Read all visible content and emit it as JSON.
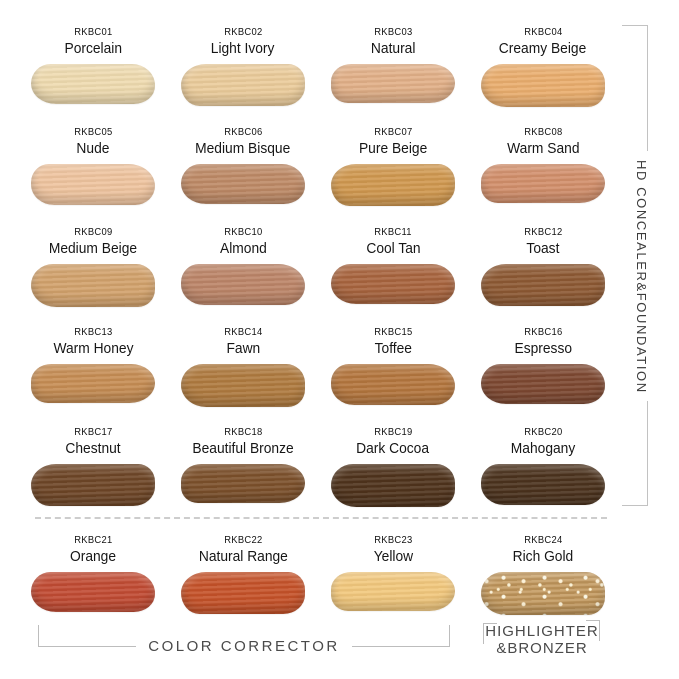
{
  "right_group": {
    "label": "HD CONCEALER&FOUNDATION"
  },
  "bottom_groups": {
    "color_corrector": "COLOR CORRECTOR",
    "highlighter_line1": "HIGHLIGHTER",
    "highlighter_line2": "&BRONZER"
  },
  "shades": [
    {
      "code": "RKBC01",
      "name": "Porcelain",
      "color": "#EFDBB0"
    },
    {
      "code": "RKBC02",
      "name": "Light Ivory",
      "color": "#EBCC9B"
    },
    {
      "code": "RKBC03",
      "name": "Natural",
      "color": "#E2B088"
    },
    {
      "code": "RKBC04",
      "name": "Creamy Beige",
      "color": "#EAAE6E"
    },
    {
      "code": "RKBC05",
      "name": "Nude",
      "color": "#EFC49F"
    },
    {
      "code": "RKBC06",
      "name": "Medium Bisque",
      "color": "#BE8A66"
    },
    {
      "code": "RKBC07",
      "name": "Pure Beige",
      "color": "#D0984F"
    },
    {
      "code": "RKBC08",
      "name": "Warm Sand",
      "color": "#D28F6B"
    },
    {
      "code": "RKBC09",
      "name": "Medium Beige",
      "color": "#D2A26C"
    },
    {
      "code": "RKBC10",
      "name": "Almond",
      "color": "#BC8568"
    },
    {
      "code": "RKBC11",
      "name": "Cool Tan",
      "color": "#A8643E"
    },
    {
      "code": "RKBC12",
      "name": "Toast",
      "color": "#8D5933"
    },
    {
      "code": "RKBC13",
      "name": "Warm Honey",
      "color": "#C68D54"
    },
    {
      "code": "RKBC14",
      "name": "Fawn",
      "color": "#AF7A3F"
    },
    {
      "code": "RKBC15",
      "name": "Toffee",
      "color": "#B4763E"
    },
    {
      "code": "RKBC16",
      "name": "Espresso",
      "color": "#7D4831"
    },
    {
      "code": "RKBC17",
      "name": "Chestnut",
      "color": "#6E4627"
    },
    {
      "code": "RKBC18",
      "name": "Beautiful Bronze",
      "color": "#7C502B"
    },
    {
      "code": "RKBC19",
      "name": "Dark Cocoa",
      "color": "#4F331C"
    },
    {
      "code": "RKBC20",
      "name": "Mahogany",
      "color": "#4B321D"
    },
    {
      "code": "RKBC21",
      "name": "Orange",
      "color": "#C14B33"
    },
    {
      "code": "RKBC22",
      "name": "Natural Range",
      "color": "#C55229"
    },
    {
      "code": "RKBC23",
      "name": "Yellow",
      "color": "#F2C87D"
    },
    {
      "code": "RKBC24",
      "name": "Rich Gold",
      "color": "#C3985C",
      "finish": "shimmer"
    }
  ],
  "line_color": "#c2c2c2"
}
